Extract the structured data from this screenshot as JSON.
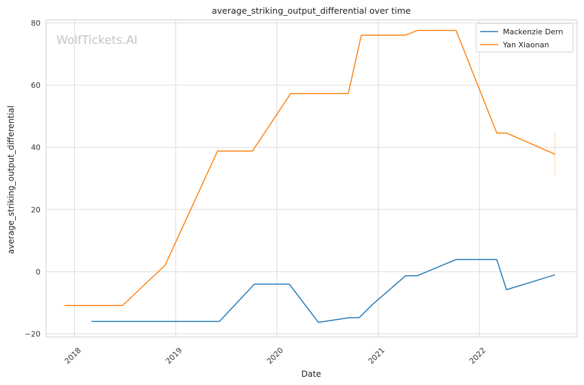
{
  "chart_data": {
    "type": "line",
    "title": "average_striking_output_differential over time",
    "xlabel": "Date",
    "ylabel": "average_striking_output_differential",
    "watermark": "WolfTickets.AI",
    "x_ticks": [
      "2018",
      "2019",
      "2020",
      "2021",
      "2022"
    ],
    "y_ticks": [
      "−20",
      "0",
      "20",
      "40",
      "60",
      "80"
    ],
    "ylim": [
      -21,
      81
    ],
    "xlim": [
      "2017-09-20",
      "2022-12-20"
    ],
    "grid": true,
    "legend_position": "top-right",
    "series": [
      {
        "name": "Mackenzie Dern",
        "color": "#1f77b4",
        "points": [
          {
            "x": "2018-03-03",
            "y": -16
          },
          {
            "x": "2018-06-01",
            "y": -16
          },
          {
            "x": "2019-06-08",
            "y": -16
          },
          {
            "x": "2019-10-12",
            "y": -4
          },
          {
            "x": "2020-02-15",
            "y": -4
          },
          {
            "x": "2020-05-30",
            "y": -16.3
          },
          {
            "x": "2020-09-19",
            "y": -14.8
          },
          {
            "x": "2020-10-24",
            "y": -14.8
          },
          {
            "x": "2020-12-12",
            "y": -10.5
          },
          {
            "x": "2021-04-10",
            "y": -1.3
          },
          {
            "x": "2021-05-22",
            "y": -1.3
          },
          {
            "x": "2021-10-09",
            "y": 3.9
          },
          {
            "x": "2022-03-05",
            "y": 3.9
          },
          {
            "x": "2022-04-09",
            "y": -5.8
          },
          {
            "x": "2022-10-01",
            "y": -1
          }
        ]
      },
      {
        "name": "Yan Xiaonan",
        "color": "#ff7f0e",
        "points": [
          {
            "x": "2017-11-25",
            "y": -10.9
          },
          {
            "x": "2018-06-23",
            "y": -10.9
          },
          {
            "x": "2018-11-24",
            "y": 2.1
          },
          {
            "x": "2019-06-01",
            "y": 38.8
          },
          {
            "x": "2019-10-05",
            "y": 38.8
          },
          {
            "x": "2020-02-20",
            "y": 57.3
          },
          {
            "x": "2020-09-15",
            "y": 57.3
          },
          {
            "x": "2020-11-01",
            "y": 76.1
          },
          {
            "x": "2021-04-10",
            "y": 76.1
          },
          {
            "x": "2021-05-22",
            "y": 77.6
          },
          {
            "x": "2021-10-09",
            "y": 77.6
          },
          {
            "x": "2022-03-05",
            "y": 44.6
          },
          {
            "x": "2022-04-09",
            "y": 44.6
          },
          {
            "x": "2022-10-01",
            "y": 37.8
          }
        ],
        "error_bar": {
          "x": "2022-10-01",
          "low": 31,
          "high": 45
        }
      }
    ]
  }
}
